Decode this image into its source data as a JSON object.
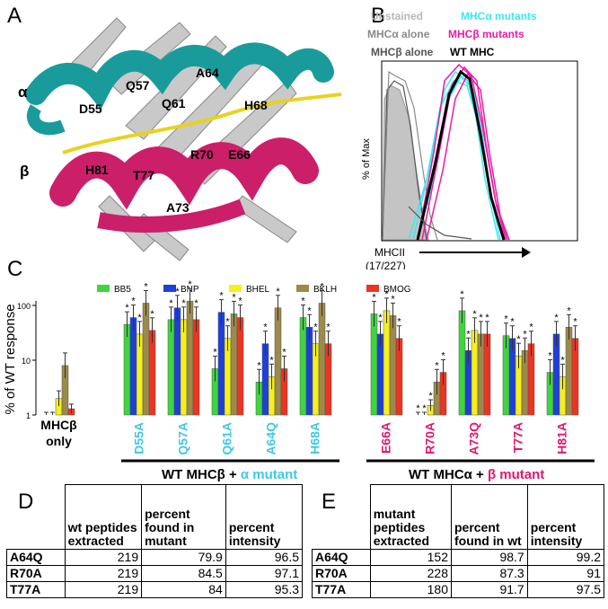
{
  "panels": {
    "a": "A",
    "b": "B",
    "c": "C",
    "d": "D",
    "e": "E"
  },
  "structure": {
    "helix_alpha_label": "α",
    "helix_beta_label": "β",
    "alpha_residues": [
      "D55",
      "Q57",
      "Q61",
      "A64",
      "H68"
    ],
    "beta_residues": [
      "H81",
      "T77",
      "R70",
      "E66",
      "A73"
    ],
    "colors": {
      "alpha": "#1a9b9b",
      "beta": "#cc1f6a",
      "peptide": "#e8d21f",
      "sheet": "#c8c8c8"
    }
  },
  "flow": {
    "legend": [
      {
        "label": "Unstained",
        "color": "#b8b8b8"
      },
      {
        "label": "MHCα mutants",
        "color": "#3ee8f0"
      },
      {
        "label": "MHCα alone",
        "color": "#8a8a8a"
      },
      {
        "label": "MHCβ mutants",
        "color": "#ee1aa6"
      },
      {
        "label": "MHCβ alone",
        "color": "#555555"
      },
      {
        "label": "WT MHC",
        "color": "#000000"
      }
    ],
    "ylabel": "% of Max",
    "xlabel_line1": "MHCII",
    "xlabel_line2": "(17/227)"
  },
  "chart_data": {
    "type": "bar",
    "ylabel": "% of WT response",
    "yscale": "log",
    "ylim": [
      1,
      100
    ],
    "ticks": [
      "100",
      "10",
      "1"
    ],
    "series": [
      {
        "name": "BB5",
        "color": "#3ed63e"
      },
      {
        "name": "BNP",
        "color": "#1f3fd9"
      },
      {
        "name": "BHEL",
        "color": "#f5f01e"
      },
      {
        "name": "BKLH",
        "color": "#9b8a4a"
      },
      {
        "name": "BMOG",
        "color": "#ee3322"
      }
    ],
    "groups": [
      {
        "label": "MHCβ only",
        "color": "#000000",
        "values": [
          1,
          1,
          2,
          8,
          1.3
        ]
      },
      {
        "label": "D55A",
        "color": "#3ec8e8",
        "values": [
          45,
          60,
          30,
          110,
          35
        ]
      },
      {
        "label": "Q57A",
        "color": "#3ec8e8",
        "values": [
          55,
          90,
          55,
          120,
          55
        ]
      },
      {
        "label": "Q61A",
        "color": "#3ec8e8",
        "values": [
          7,
          75,
          25,
          70,
          60
        ]
      },
      {
        "label": "A64Q",
        "color": "#3ec8e8",
        "values": [
          4,
          20,
          5,
          90,
          7
        ]
      },
      {
        "label": "H68A",
        "color": "#3ec8e8",
        "values": [
          60,
          40,
          20,
          110,
          20
        ]
      },
      {
        "label": "E66A",
        "color": "#e0186e",
        "values": [
          70,
          30,
          80,
          65,
          25
        ]
      },
      {
        "label": "R70A",
        "color": "#e0186e",
        "values": [
          1,
          1,
          1.5,
          4,
          6
        ]
      },
      {
        "label": "A73Q",
        "color": "#e0186e",
        "values": [
          80,
          15,
          35,
          30,
          30
        ]
      },
      {
        "label": "T77A",
        "color": "#e0186e",
        "values": [
          28,
          25,
          12,
          15,
          20
        ]
      },
      {
        "label": "H81A",
        "color": "#e0186e",
        "values": [
          6,
          30,
          5,
          40,
          25
        ]
      }
    ],
    "group_captions": [
      {
        "prefix": "WT MHCβ + ",
        "suffix": "α mutant"
      },
      {
        "prefix": "WT MHCα + ",
        "suffix": "β mutant"
      }
    ],
    "star": "*"
  },
  "table_d": {
    "headers": [
      "wt peptides extracted",
      "percent found in mutant",
      "percent intensity"
    ],
    "rows": [
      {
        "name": "A64Q",
        "v1": "219",
        "v2": "79.9",
        "v3": "96.5"
      },
      {
        "name": "R70A",
        "v1": "219",
        "v2": "84.5",
        "v3": "97.1"
      },
      {
        "name": "T77A",
        "v1": "219",
        "v2": "84",
        "v3": "95.3"
      }
    ]
  },
  "table_e": {
    "headers": [
      "mutant peptides extracted",
      "percent found in wt",
      "percent intensity"
    ],
    "rows": [
      {
        "name": "A64Q",
        "v1": "152",
        "v2": "98.7",
        "v3": "99.2"
      },
      {
        "name": "R70A",
        "v1": "228",
        "v2": "87.3",
        "v3": "91"
      },
      {
        "name": "T77A",
        "v1": "180",
        "v2": "91.7",
        "v3": "97.5"
      }
    ]
  }
}
